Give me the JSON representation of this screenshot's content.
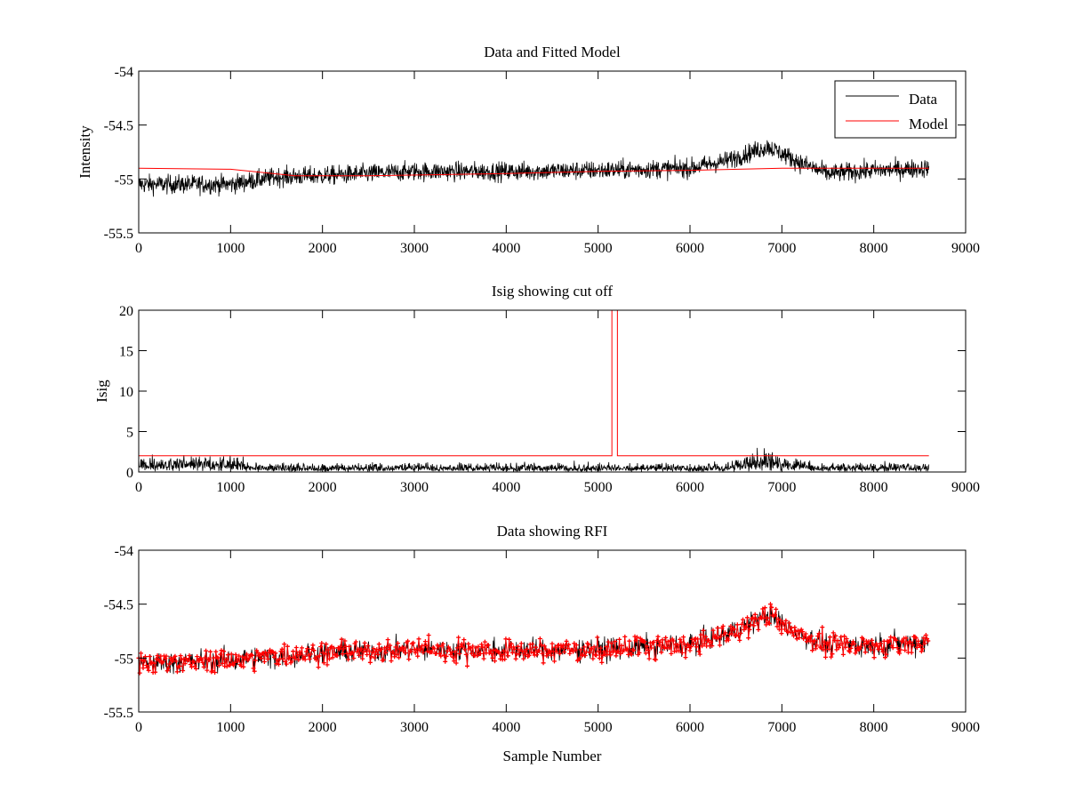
{
  "figure": {
    "colors": {
      "data": "#000000",
      "model": "#ff0000",
      "rfi": "#ff0000",
      "axes": "#000000"
    }
  },
  "chart_data": [
    {
      "type": "line",
      "title": "Data and Fitted Model",
      "xlabel": "",
      "ylabel": "Intensity",
      "xlim": [
        0,
        9000
      ],
      "ylim": [
        -55.5,
        -54
      ],
      "xticks": [
        0,
        1000,
        2000,
        3000,
        4000,
        5000,
        6000,
        7000,
        8000,
        9000
      ],
      "yticks": [
        -55.5,
        -55,
        -54.5,
        -54
      ],
      "xtick_labels": [
        "0",
        "1000",
        "2000",
        "3000",
        "4000",
        "5000",
        "6000",
        "7000",
        "8000",
        "9000"
      ],
      "ytick_labels": [
        "-55.5",
        "-55",
        "-54.5",
        "-54"
      ],
      "legend": {
        "position": "top-right",
        "entries": [
          "Data",
          "Model"
        ]
      },
      "series": [
        {
          "name": "Data",
          "color": "#000000",
          "x_range": [
            0,
            8600
          ],
          "trend_x": [
            0,
            1000,
            1500,
            2000,
            3000,
            4000,
            5000,
            6000,
            6400,
            6850,
            7200,
            7500,
            8000,
            8600
          ],
          "trend_y": [
            -55.05,
            -55.05,
            -54.98,
            -54.97,
            -54.93,
            -54.93,
            -54.92,
            -54.9,
            -54.83,
            -54.7,
            -54.85,
            -54.95,
            -54.92,
            -54.9
          ],
          "noise_amplitude": 0.09
        },
        {
          "name": "Model",
          "color": "#ff0000",
          "x": [
            0,
            1000,
            1700,
            2500,
            4000,
            5000,
            6000,
            7000,
            7400,
            8600
          ],
          "y": [
            -54.9,
            -54.91,
            -54.97,
            -54.97,
            -54.95,
            -54.93,
            -54.92,
            -54.9,
            -54.9,
            -54.9
          ]
        }
      ]
    },
    {
      "type": "line",
      "title": "Isig showing cut off",
      "xlabel": "",
      "ylabel": "Isig",
      "xlim": [
        0,
        9000
      ],
      "ylim": [
        0,
        20
      ],
      "xticks": [
        0,
        1000,
        2000,
        3000,
        4000,
        5000,
        6000,
        7000,
        8000,
        9000
      ],
      "yticks": [
        0,
        5,
        10,
        15,
        20
      ],
      "xtick_labels": [
        "0",
        "1000",
        "2000",
        "3000",
        "4000",
        "5000",
        "6000",
        "7000",
        "8000",
        "9000"
      ],
      "ytick_labels": [
        "0",
        "5",
        "10",
        "15",
        "20"
      ],
      "series": [
        {
          "name": "Isig",
          "color": "#000000",
          "x_range": [
            0,
            8600
          ],
          "envelope_x": [
            0,
            1150,
            1200,
            6300,
            6600,
            6850,
            7100,
            7400,
            8600
          ],
          "envelope_y": [
            2.6,
            2.6,
            1.4,
            1.4,
            2.4,
            3.6,
            2.4,
            1.4,
            1.4
          ]
        },
        {
          "name": "Cut off",
          "color": "#ff0000",
          "level": 2.0,
          "x_range": [
            0,
            8600
          ],
          "spikes": [
            5150,
            5210
          ],
          "spike_top": 20
        }
      ]
    },
    {
      "type": "line",
      "title": "Data showing RFI",
      "xlabel": "Sample Number",
      "ylabel": "",
      "xlim": [
        0,
        9000
      ],
      "ylim": [
        -55.5,
        -54
      ],
      "xticks": [
        0,
        1000,
        2000,
        3000,
        4000,
        5000,
        6000,
        7000,
        8000,
        9000
      ],
      "yticks": [
        -55.5,
        -55,
        -54.5,
        -54
      ],
      "xtick_labels": [
        "0",
        "1000",
        "2000",
        "3000",
        "4000",
        "5000",
        "6000",
        "7000",
        "8000",
        "9000"
      ],
      "ytick_labels": [
        "-55.5",
        "-55",
        "-54.5",
        "-54"
      ],
      "series": [
        {
          "name": "Data",
          "color": "#000000",
          "x_range": [
            0,
            8600
          ],
          "trend_x": [
            0,
            1000,
            2000,
            3000,
            4000,
            5000,
            6000,
            6400,
            6850,
            7200,
            7500,
            8000,
            8600
          ],
          "trend_y": [
            -55.05,
            -55.02,
            -54.95,
            -54.92,
            -54.93,
            -54.92,
            -54.88,
            -54.78,
            -54.6,
            -54.78,
            -54.88,
            -54.88,
            -54.85
          ],
          "noise_amplitude": 0.11
        },
        {
          "name": "RFI flagged",
          "color": "#ff0000",
          "marker": "+",
          "x_range": [
            0,
            8600
          ]
        }
      ]
    }
  ]
}
